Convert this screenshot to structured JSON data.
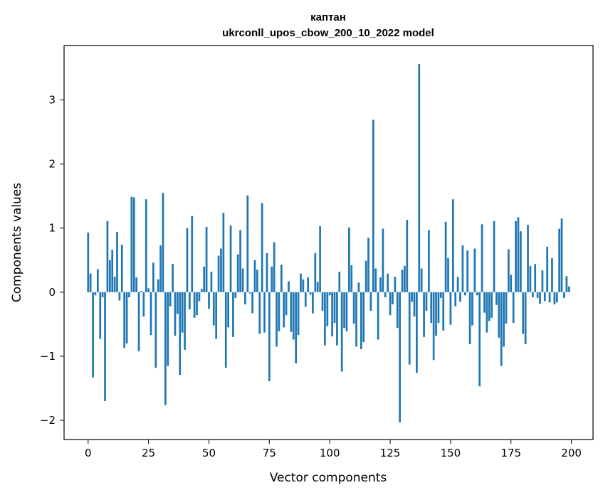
{
  "chart_data": {
    "type": "bar",
    "title": "каптан",
    "subtitle": "ukrconll_upos_cbow_200_10_2022 model",
    "xlabel": "Vector components",
    "ylabel": "Components values",
    "xlim": [
      -9.95,
      208.95
    ],
    "ylim": [
      -2.3,
      3.85
    ],
    "xticks": [
      0,
      25,
      50,
      75,
      100,
      125,
      150,
      175,
      200
    ],
    "yticks": [
      -2,
      -1,
      0,
      1,
      2,
      3
    ],
    "color": "#1f77b4",
    "grid": false,
    "legend": "none",
    "x": [
      0,
      1,
      2,
      3,
      4,
      5,
      6,
      7,
      8,
      9,
      10,
      11,
      12,
      13,
      14,
      15,
      16,
      17,
      18,
      19,
      20,
      21,
      22,
      23,
      24,
      25,
      26,
      27,
      28,
      29,
      30,
      31,
      32,
      33,
      34,
      35,
      36,
      37,
      38,
      39,
      40,
      41,
      42,
      43,
      44,
      45,
      46,
      47,
      48,
      49,
      50,
      51,
      52,
      53,
      54,
      55,
      56,
      57,
      58,
      59,
      60,
      61,
      62,
      63,
      64,
      65,
      66,
      67,
      68,
      69,
      70,
      71,
      72,
      73,
      74,
      75,
      76,
      77,
      78,
      79,
      80,
      81,
      82,
      83,
      84,
      85,
      86,
      87,
      88,
      89,
      90,
      91,
      92,
      93,
      94,
      95,
      96,
      97,
      98,
      99,
      100,
      101,
      102,
      103,
      104,
      105,
      106,
      107,
      108,
      109,
      110,
      111,
      112,
      113,
      114,
      115,
      116,
      117,
      118,
      119,
      120,
      121,
      122,
      123,
      124,
      125,
      126,
      127,
      128,
      129,
      130,
      131,
      132,
      133,
      134,
      135,
      136,
      137,
      138,
      139,
      140,
      141,
      142,
      143,
      144,
      145,
      146,
      147,
      148,
      149,
      150,
      151,
      152,
      153,
      154,
      155,
      156,
      157,
      158,
      159,
      160,
      161,
      162,
      163,
      164,
      165,
      166,
      167,
      168,
      169,
      170,
      171,
      172,
      173,
      174,
      175,
      176,
      177,
      178,
      179,
      180,
      181,
      182,
      183,
      184,
      185,
      186,
      187,
      188,
      189,
      190,
      191,
      192,
      193,
      194,
      195,
      196,
      197,
      198,
      199
    ],
    "values": [
      0.93,
      0.29,
      -1.33,
      -0.05,
      0.36,
      -0.73,
      -0.08,
      -1.7,
      1.11,
      0.5,
      0.66,
      0.24,
      0.94,
      -0.13,
      0.74,
      -0.87,
      -0.8,
      -0.08,
      1.49,
      1.48,
      0.23,
      -0.92,
      0.02,
      -0.38,
      1.45,
      0.06,
      -0.67,
      0.46,
      -1.18,
      0.2,
      0.73,
      1.55,
      -1.76,
      -1.15,
      -0.22,
      0.44,
      -0.68,
      -0.34,
      -1.29,
      -0.63,
      -0.9,
      1.0,
      -0.27,
      1.19,
      -0.4,
      -0.36,
      -0.14,
      0.05,
      0.4,
      1.02,
      -0.26,
      0.32,
      -0.52,
      -0.73,
      0.57,
      0.68,
      1.24,
      -1.18,
      -0.55,
      1.04,
      -0.7,
      -0.09,
      0.59,
      0.97,
      0.37,
      -0.19,
      1.51,
      -0.02,
      -0.33,
      0.5,
      0.35,
      -0.65,
      1.39,
      -0.63,
      0.61,
      -1.39,
      0.4,
      0.78,
      -0.85,
      -0.61,
      0.43,
      -0.55,
      -0.36,
      0.17,
      -0.62,
      -0.74,
      -1.11,
      -0.67,
      0.29,
      0.2,
      -0.23,
      0.23,
      -0.04,
      -0.33,
      0.61,
      0.16,
      1.03,
      -0.29,
      -0.83,
      -0.53,
      -0.05,
      -0.69,
      -0.48,
      -0.83,
      0.32,
      -1.24,
      -0.56,
      -0.61,
      1.01,
      0.42,
      -0.49,
      -0.85,
      0.15,
      -0.89,
      -0.78,
      0.49,
      0.85,
      -0.29,
      2.69,
      0.37,
      -0.74,
      0.23,
      0.99,
      -0.08,
      0.29,
      -0.36,
      -0.19,
      0.24,
      -0.56,
      -2.03,
      0.35,
      0.41,
      1.13,
      -1.13,
      -0.15,
      -0.38,
      -1.26,
      3.56,
      0.37,
      -0.7,
      -0.29,
      0.97,
      -0.48,
      -1.06,
      -0.68,
      -0.48,
      -0.09,
      -0.6,
      1.1,
      0.53,
      -0.51,
      1.45,
      -0.22,
      0.24,
      -0.15,
      0.73,
      -0.05,
      0.65,
      -0.81,
      -0.52,
      0.68,
      -0.05,
      -1.47,
      1.06,
      -0.32,
      -0.63,
      -0.45,
      -0.4,
      1.11,
      -0.2,
      -0.71,
      -1.15,
      -0.85,
      -0.49,
      0.67,
      0.27,
      -0.48,
      1.11,
      1.17,
      0.95,
      -0.65,
      -0.81,
      1.05,
      0.41,
      -0.08,
      0.44,
      -0.09,
      -0.18,
      0.34,
      -0.14,
      0.71,
      -0.16,
      0.53,
      -0.19,
      -0.16,
      0.99,
      1.15,
      -0.09,
      0.25,
      0.09
    ]
  }
}
